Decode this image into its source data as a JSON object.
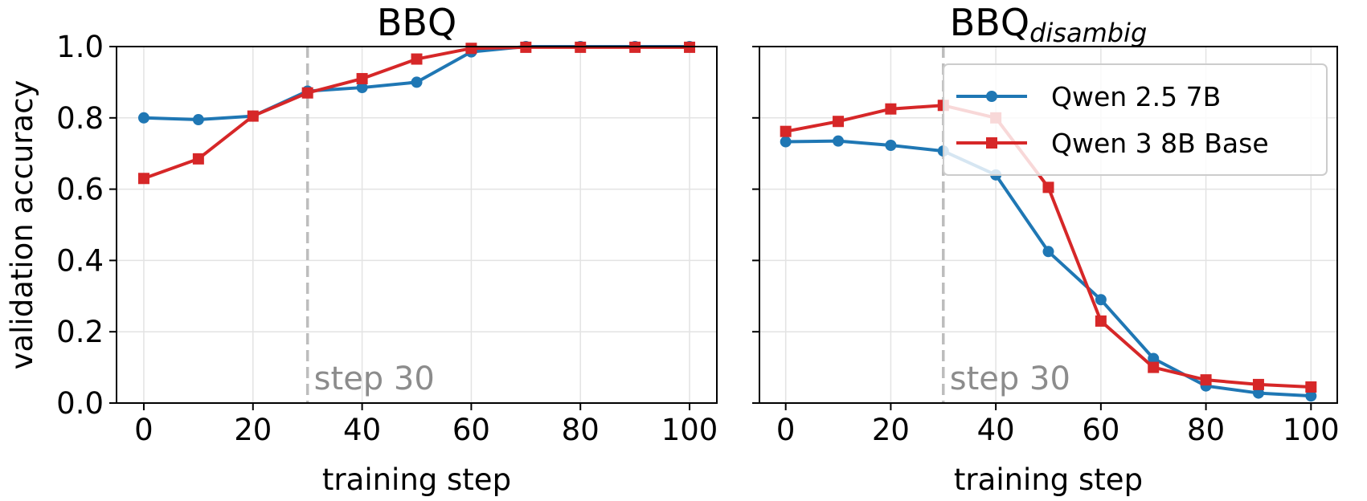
{
  "chart_data": [
    {
      "type": "line",
      "title": "BBQ",
      "title_sub": "",
      "xlabel": "training step",
      "ylabel": "validation accuracy",
      "xlim": [
        -5,
        105
      ],
      "ylim": [
        0.0,
        1.0
      ],
      "xticks": [
        0,
        20,
        40,
        60,
        80,
        100
      ],
      "xtick_labels": [
        "0",
        "20",
        "40",
        "60",
        "80",
        "100"
      ],
      "yticks": [
        0.0,
        0.2,
        0.4,
        0.6,
        0.8,
        1.0
      ],
      "ytick_labels": [
        "0.0",
        "0.2",
        "0.4",
        "0.6",
        "0.8",
        "1.0"
      ],
      "grid": true,
      "vline": {
        "x": 30,
        "label": "step 30"
      },
      "x": [
        0,
        10,
        20,
        30,
        40,
        50,
        60,
        70,
        80,
        90,
        100
      ],
      "series": [
        {
          "name": "Qwen 2.5 7B",
          "color": "#1f77b4",
          "marker": "circle",
          "values": [
            0.8,
            0.795,
            0.805,
            0.875,
            0.885,
            0.9,
            0.985,
            1.0,
            1.0,
            1.0,
            1.0
          ]
        },
        {
          "name": "Qwen 3 8B Base",
          "color": "#d62728",
          "marker": "square",
          "values": [
            0.63,
            0.685,
            0.805,
            0.87,
            0.91,
            0.965,
            0.995,
            0.998,
            0.998,
            0.998,
            0.998
          ]
        }
      ]
    },
    {
      "type": "line",
      "title": "BBQ",
      "title_sub": "disambig",
      "xlabel": "training step",
      "ylabel": "",
      "xlim": [
        -5,
        105
      ],
      "ylim": [
        0.0,
        1.0
      ],
      "xticks": [
        0,
        20,
        40,
        60,
        80,
        100
      ],
      "xtick_labels": [
        "0",
        "20",
        "40",
        "60",
        "80",
        "100"
      ],
      "yticks": [
        0.0,
        0.2,
        0.4,
        0.6,
        0.8,
        1.0
      ],
      "ytick_labels": [],
      "grid": true,
      "vline": {
        "x": 30,
        "label": "step 30"
      },
      "legend": "top-right",
      "x": [
        0,
        10,
        20,
        30,
        40,
        50,
        60,
        70,
        80,
        90,
        100
      ],
      "series": [
        {
          "name": "Qwen 2.5 7B",
          "color": "#1f77b4",
          "marker": "circle",
          "values": [
            0.733,
            0.735,
            0.723,
            0.707,
            0.64,
            0.425,
            0.29,
            0.125,
            0.048,
            0.028,
            0.02
          ]
        },
        {
          "name": "Qwen 3 8B Base",
          "color": "#d62728",
          "marker": "square",
          "values": [
            0.762,
            0.79,
            0.825,
            0.835,
            0.8,
            0.605,
            0.23,
            0.1,
            0.065,
            0.052,
            0.045
          ]
        }
      ]
    }
  ]
}
